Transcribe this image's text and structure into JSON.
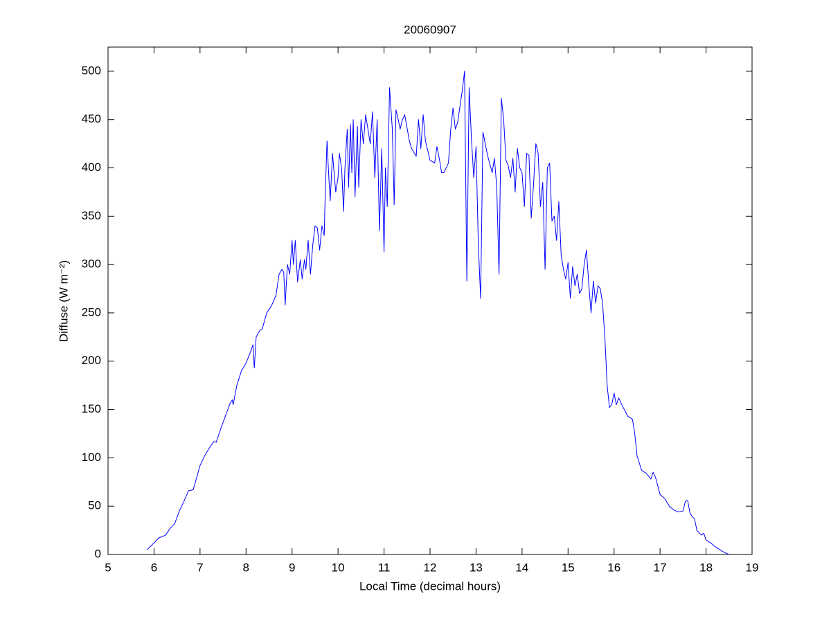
{
  "chart_data": {
    "type": "line",
    "title": "20060907",
    "x_label": "Local Time (decimal hours)",
    "y_label": "Diffuse (W m⁻²)",
    "xlim": [
      5,
      19
    ],
    "ylim": [
      0,
      525
    ],
    "xticks": [
      5,
      6,
      7,
      8,
      9,
      10,
      11,
      12,
      13,
      14,
      15,
      16,
      17,
      18,
      19
    ],
    "yticks": [
      0,
      50,
      100,
      150,
      200,
      250,
      300,
      350,
      400,
      450,
      500
    ],
    "grid": false,
    "series": [
      {
        "color": "#0000ff",
        "x": [
          5.85,
          6.0,
          6.1,
          6.25,
          6.35,
          6.45,
          6.55,
          6.65,
          6.75,
          6.85,
          6.9,
          7.0,
          7.1,
          7.2,
          7.3,
          7.35,
          7.45,
          7.55,
          7.65,
          7.7,
          7.72,
          7.8,
          7.9,
          8.0,
          8.1,
          8.15,
          8.18,
          8.22,
          8.3,
          8.35,
          8.45,
          8.55,
          8.65,
          8.72,
          8.78,
          8.82,
          8.85,
          8.9,
          8.95,
          9.0,
          9.03,
          9.07,
          9.12,
          9.18,
          9.22,
          9.27,
          9.3,
          9.35,
          9.4,
          9.45,
          9.5,
          9.55,
          9.6,
          9.65,
          9.7,
          9.72,
          9.76,
          9.8,
          9.83,
          9.88,
          9.95,
          10.0,
          10.03,
          10.08,
          10.12,
          10.15,
          10.2,
          10.23,
          10.27,
          10.3,
          10.33,
          10.37,
          10.42,
          10.45,
          10.5,
          10.55,
          10.6,
          10.65,
          10.7,
          10.75,
          10.8,
          10.85,
          10.9,
          10.95,
          11.0,
          11.03,
          11.07,
          11.12,
          11.18,
          11.22,
          11.26,
          11.3,
          11.35,
          11.4,
          11.45,
          11.55,
          11.6,
          11.65,
          11.7,
          11.75,
          11.8,
          11.85,
          11.9,
          12.0,
          12.1,
          12.15,
          12.2,
          12.25,
          12.3,
          12.4,
          12.45,
          12.5,
          12.55,
          12.6,
          12.7,
          12.75,
          12.8,
          12.85,
          12.9,
          12.95,
          13.0,
          13.05,
          13.1,
          13.15,
          13.25,
          13.35,
          13.4,
          13.45,
          13.5,
          13.55,
          13.6,
          13.65,
          13.7,
          13.75,
          13.8,
          13.85,
          13.9,
          13.95,
          14.0,
          14.05,
          14.1,
          14.15,
          14.2,
          14.25,
          14.3,
          14.35,
          14.4,
          14.45,
          14.5,
          14.55,
          14.6,
          14.65,
          14.7,
          14.75,
          14.8,
          14.85,
          14.9,
          14.95,
          15.0,
          15.05,
          15.1,
          15.15,
          15.2,
          15.25,
          15.3,
          15.35,
          15.4,
          15.45,
          15.5,
          15.55,
          15.6,
          15.65,
          15.7,
          15.75,
          15.8,
          15.85,
          15.9,
          15.95,
          16.0,
          16.05,
          16.1,
          16.2,
          16.3,
          16.4,
          16.45,
          16.5,
          16.6,
          16.7,
          16.8,
          16.85,
          16.9,
          17.0,
          17.1,
          17.2,
          17.3,
          17.4,
          17.5,
          17.55,
          17.6,
          17.65,
          17.7,
          17.75,
          17.8,
          17.9,
          17.95,
          18.0,
          18.1,
          18.2,
          18.3,
          18.4,
          18.5
        ],
        "values": [
          5,
          12,
          17,
          20,
          27,
          32,
          45,
          55,
          66,
          67,
          75,
          92,
          102,
          110,
          117,
          116,
          130,
          143,
          156,
          160,
          155,
          175,
          190,
          198,
          210,
          217,
          193,
          225,
          232,
          233,
          250,
          257,
          268,
          290,
          295,
          292,
          258,
          300,
          290,
          325,
          300,
          325,
          282,
          305,
          285,
          305,
          295,
          325,
          290,
          320,
          340,
          338,
          315,
          340,
          330,
          370,
          428,
          390,
          366,
          415,
          375,
          390,
          415,
          398,
          355,
          400,
          440,
          380,
          445,
          395,
          450,
          370,
          443,
          380,
          450,
          425,
          455,
          440,
          425,
          458,
          390,
          450,
          335,
          420,
          313,
          400,
          360,
          483,
          440,
          362,
          460,
          452,
          440,
          450,
          455,
          428,
          420,
          416,
          412,
          450,
          420,
          455,
          428,
          408,
          405,
          422,
          410,
          395,
          395,
          405,
          440,
          462,
          440,
          447,
          480,
          500,
          283,
          483,
          430,
          390,
          422,
          320,
          265,
          437,
          413,
          395,
          410,
          380,
          290,
          472,
          450,
          408,
          402,
          390,
          410,
          375,
          420,
          400,
          395,
          360,
          415,
          413,
          348,
          383,
          425,
          415,
          360,
          385,
          295,
          400,
          405,
          345,
          350,
          325,
          365,
          310,
          295,
          285,
          302,
          265,
          298,
          278,
          290,
          270,
          275,
          300,
          315,
          280,
          250,
          283,
          260,
          278,
          275,
          260,
          225,
          175,
          152,
          155,
          167,
          155,
          162,
          152,
          143,
          140,
          125,
          102,
          87,
          84,
          78,
          85,
          80,
          62,
          58,
          50,
          46,
          44,
          45,
          55,
          56,
          43,
          39,
          37,
          25,
          20,
          22,
          15,
          12,
          8,
          5,
          2,
          0
        ]
      }
    ]
  }
}
